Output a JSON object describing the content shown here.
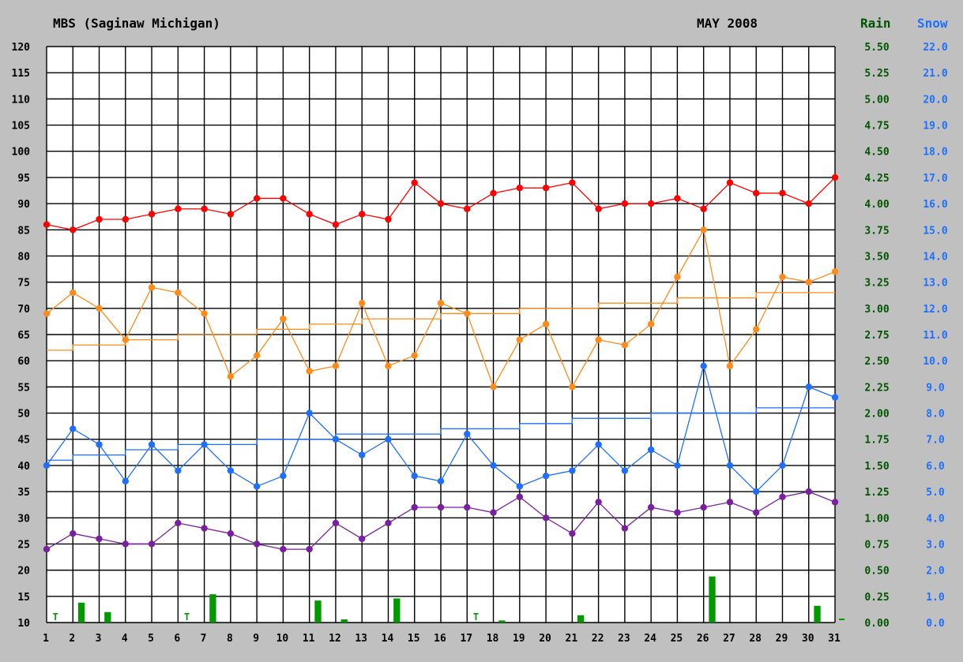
{
  "header": {
    "station": "MBS (Saginaw Michigan)",
    "month": "MAY 2008",
    "rain_label": "Rain",
    "snow_label": "Snow"
  },
  "colors": {
    "background": "#c0c0c0",
    "plot": "#ffffff",
    "grid": "#000000",
    "record_high": "#ff0000",
    "high": "#ff8c1a",
    "normal_high": "#ff8c1a",
    "low": "#1e6fff",
    "normal_low": "#1e6fff",
    "record_low": "#7b1fa2",
    "rain": "#009900",
    "rain_axis_text": "#005500",
    "snow_axis_text": "#1e6fff"
  },
  "chart_data": {
    "type": "line",
    "x": [
      1,
      2,
      3,
      4,
      5,
      6,
      7,
      8,
      9,
      10,
      11,
      12,
      13,
      14,
      15,
      16,
      17,
      18,
      19,
      20,
      21,
      22,
      23,
      24,
      25,
      26,
      27,
      28,
      29,
      30,
      31
    ],
    "ylim": [
      10,
      120
    ],
    "yticks": [
      120,
      115,
      110,
      105,
      100,
      95,
      90,
      85,
      80,
      75,
      70,
      65,
      60,
      55,
      50,
      45,
      40,
      35,
      30,
      25,
      20,
      15,
      10
    ],
    "rain_ticks": [
      "5.50",
      "5.25",
      "5.00",
      "4.75",
      "4.50",
      "4.25",
      "4.00",
      "3.75",
      "3.50",
      "3.25",
      "3.00",
      "2.75",
      "2.50",
      "2.25",
      "2.00",
      "1.75",
      "1.50",
      "1.25",
      "1.00",
      "0.75",
      "0.50",
      "0.25",
      "0.00"
    ],
    "snow_ticks": [
      "22.0",
      "21.0",
      "20.0",
      "19.0",
      "18.0",
      "17.0",
      "16.0",
      "15.0",
      "14.0",
      "13.0",
      "12.0",
      "11.0",
      "10.0",
      "9.0",
      "8.0",
      "7.0",
      "6.0",
      "5.0",
      "4.0",
      "3.0",
      "2.0",
      "1.0",
      "0.0"
    ],
    "rain_ylim": [
      0,
      5.5
    ],
    "series": [
      {
        "id": "record_high",
        "color": "#ff0000",
        "markers": true,
        "values": [
          86,
          85,
          87,
          87,
          88,
          89,
          89,
          88,
          91,
          91,
          88,
          86,
          88,
          87,
          94,
          90,
          89,
          92,
          93,
          93,
          94,
          89,
          90,
          90,
          91,
          89,
          94,
          92,
          92,
          90,
          95
        ]
      },
      {
        "id": "high",
        "color": "#ff8c1a",
        "markers": true,
        "values": [
          69,
          73,
          70,
          64,
          74,
          73,
          69,
          57,
          61,
          68,
          58,
          59,
          71,
          59,
          61,
          71,
          69,
          55,
          64,
          67,
          55,
          64,
          63,
          67,
          76,
          85,
          59,
          66,
          76,
          75,
          77
        ]
      },
      {
        "id": "normal_high",
        "color": "#ff8c1a",
        "markers": false,
        "step": true,
        "values": [
          62,
          63,
          63,
          64,
          64,
          65,
          65,
          65,
          66,
          66,
          67,
          67,
          68,
          68,
          68,
          69,
          69,
          69,
          70,
          70,
          70,
          71,
          71,
          71,
          72,
          72,
          72,
          73,
          73,
          73,
          73
        ]
      },
      {
        "id": "low",
        "color": "#1e6fff",
        "markers": true,
        "values": [
          40,
          47,
          44,
          37,
          44,
          39,
          44,
          39,
          36,
          38,
          50,
          45,
          42,
          45,
          38,
          37,
          46,
          40,
          36,
          38,
          39,
          44,
          39,
          43,
          40,
          59,
          40,
          35,
          40,
          55,
          53
        ]
      },
      {
        "id": "normal_low",
        "color": "#1e6fff",
        "markers": false,
        "step": true,
        "values": [
          41,
          42,
          42,
          43,
          43,
          44,
          44,
          44,
          45,
          45,
          45,
          46,
          46,
          46,
          46,
          47,
          47,
          47,
          48,
          48,
          49,
          49,
          49,
          50,
          50,
          50,
          50,
          51,
          51,
          51,
          51
        ]
      },
      {
        "id": "record_low",
        "color": "#7b1fa2",
        "markers": true,
        "values": [
          24,
          27,
          26,
          25,
          25,
          29,
          28,
          27,
          25,
          24,
          24,
          29,
          26,
          29,
          32,
          32,
          32,
          31,
          34,
          30,
          27,
          33,
          28,
          32,
          31,
          32,
          33,
          31,
          34,
          35,
          33
        ]
      }
    ],
    "rain": [
      {
        "day": 1,
        "trace": true
      },
      {
        "day": 2,
        "value": 0.19
      },
      {
        "day": 3,
        "value": 0.1
      },
      {
        "day": 6,
        "trace": true
      },
      {
        "day": 7,
        "value": 0.27
      },
      {
        "day": 11,
        "value": 0.21
      },
      {
        "day": 12,
        "value": 0.03
      },
      {
        "day": 14,
        "value": 0.23
      },
      {
        "day": 17,
        "trace": true
      },
      {
        "day": 18,
        "value": 0.02
      },
      {
        "day": 21,
        "value": 0.07
      },
      {
        "day": 26,
        "value": 0.44
      },
      {
        "day": 30,
        "value": 0.16
      }
    ],
    "trace_label": "T",
    "snow_marker_day": 31
  }
}
